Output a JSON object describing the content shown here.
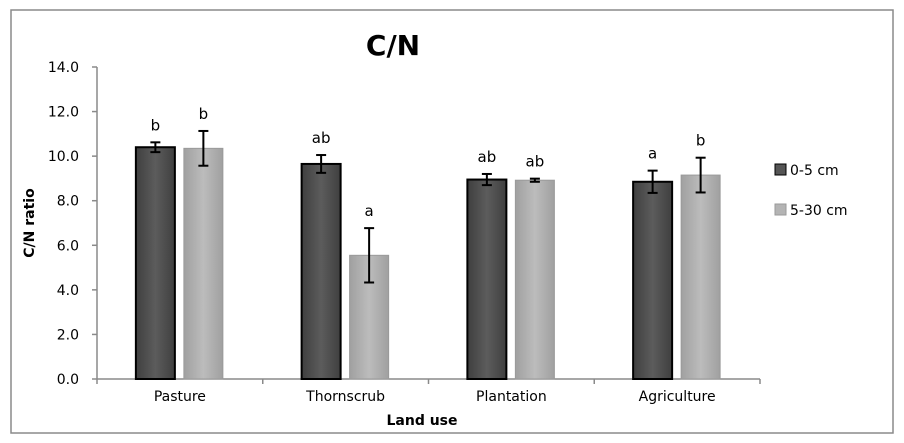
{
  "chart_data": {
    "type": "bar",
    "title": "C/N",
    "xlabel": "Land use",
    "ylabel": "C/N ratio",
    "ylim": [
      0,
      14
    ],
    "yticks": [
      "0.0",
      "2.0",
      "4.0",
      "6.0",
      "8.0",
      "10.0",
      "12.0",
      "14.0"
    ],
    "categories": [
      "Pasture",
      "Thornscrub",
      "Plantation",
      "Agriculture"
    ],
    "grid": false,
    "legend_position": "right",
    "series": [
      {
        "name": "0-5 cm",
        "color": "#555555",
        "values": [
          10.4,
          9.65,
          8.95,
          8.85
        ],
        "errors": [
          0.22,
          0.4,
          0.25,
          0.5
        ],
        "letters": [
          "b",
          "ab",
          "ab",
          "a"
        ]
      },
      {
        "name": "5-30 cm",
        "color": "#b4b4b4",
        "values": [
          10.35,
          5.55,
          8.92,
          9.15
        ],
        "errors": [
          0.78,
          1.22,
          0.07,
          0.78
        ],
        "letters": [
          "b",
          "a",
          "ab",
          "b"
        ]
      }
    ]
  }
}
